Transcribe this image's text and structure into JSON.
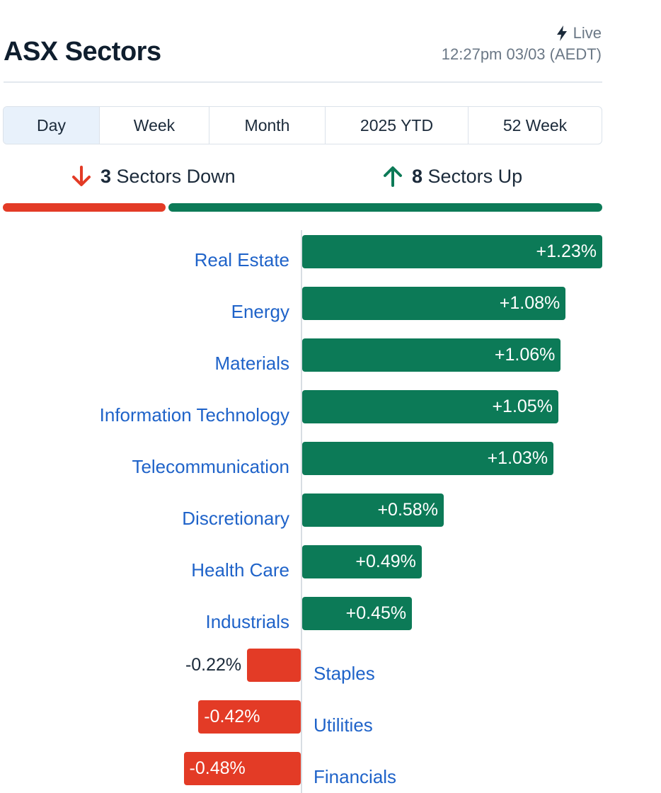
{
  "header": {
    "title": "ASX Sectors",
    "live_label": "Live",
    "timestamp": "12:27pm 03/03 (AEDT)",
    "live_icon": "bolt-icon"
  },
  "tabs": [
    {
      "label": "Day",
      "active": true
    },
    {
      "label": "Week",
      "active": false
    },
    {
      "label": "Month",
      "active": false
    },
    {
      "label": "2025 YTD",
      "active": false
    },
    {
      "label": "52 Week",
      "active": false
    }
  ],
  "summary": {
    "down_count": "3",
    "down_label": "Sectors Down",
    "up_count": "8",
    "up_label": "Sectors Up",
    "down_icon": "arrow-down-icon",
    "up_icon": "arrow-up-icon"
  },
  "colors": {
    "up": "#0c7a57",
    "down": "#e33b26",
    "link": "#1f63c9",
    "active_tab": "#e8f1fb"
  },
  "chart_data": {
    "type": "bar",
    "orientation": "horizontal",
    "categories": [
      "Real Estate",
      "Energy",
      "Materials",
      "Information Technology",
      "Telecommunication",
      "Discretionary",
      "Health Care",
      "Industrials",
      "Staples",
      "Utilities",
      "Financials"
    ],
    "values": [
      1.23,
      1.08,
      1.06,
      1.05,
      1.03,
      0.58,
      0.49,
      0.45,
      -0.22,
      -0.42,
      -0.48
    ],
    "labels": [
      "+1.23%",
      "+1.08%",
      "+1.06%",
      "+1.05%",
      "+1.03%",
      "+0.58%",
      "+0.49%",
      "+0.45%",
      "-0.22%",
      "-0.42%",
      "-0.48%"
    ],
    "grid": false,
    "legend": "none"
  }
}
